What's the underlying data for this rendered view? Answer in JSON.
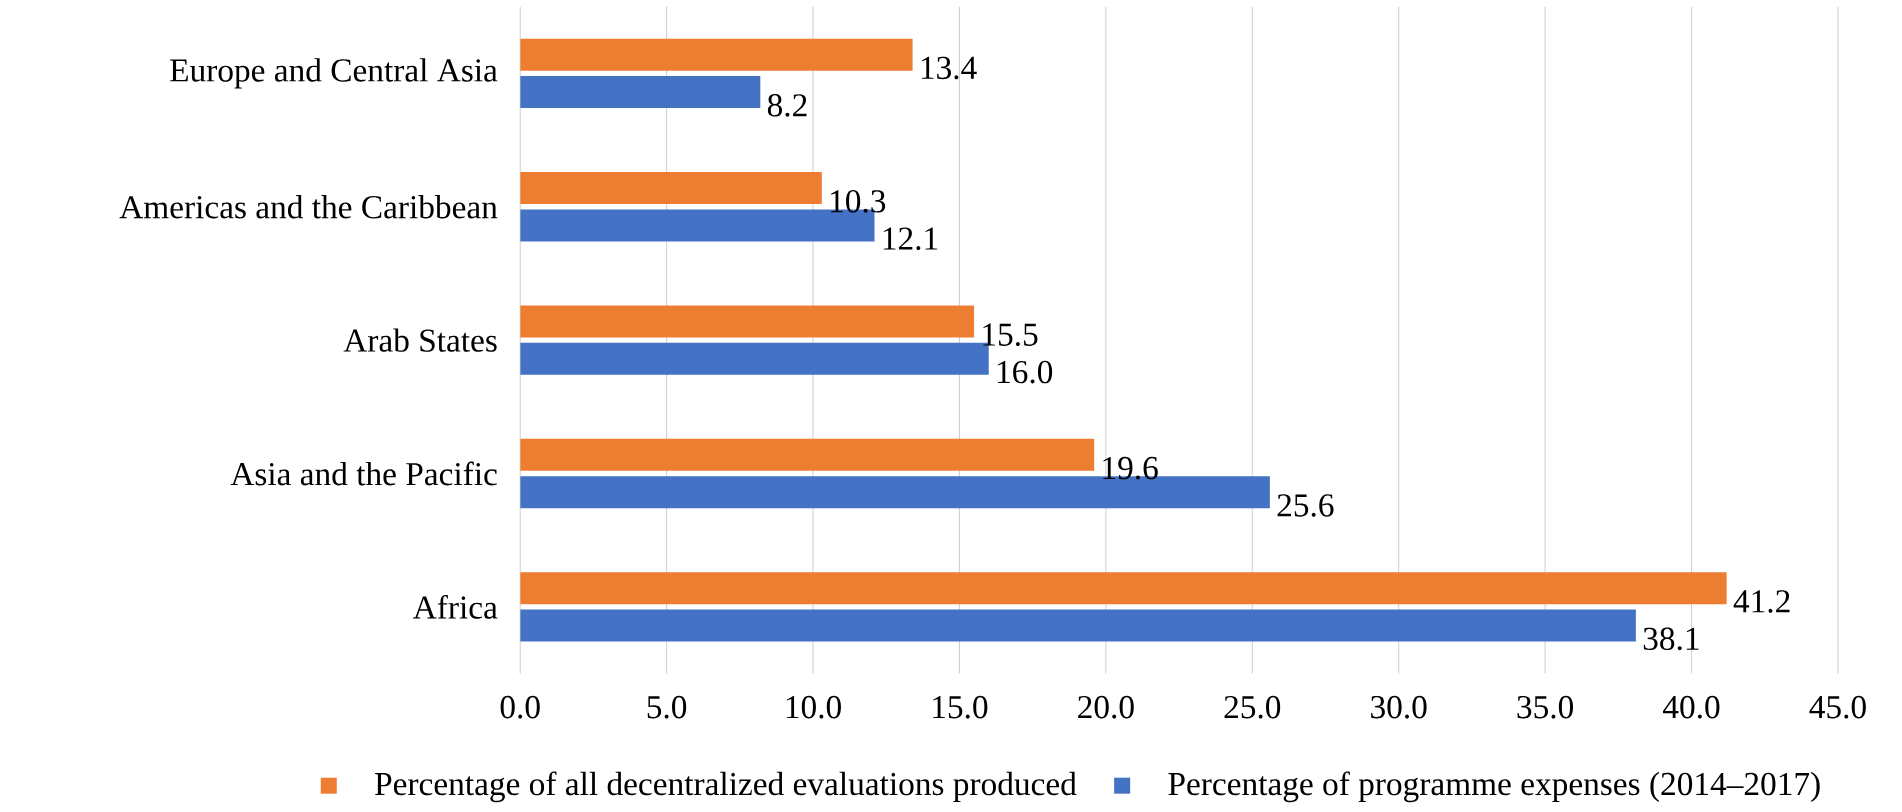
{
  "chart_data": {
    "type": "bar",
    "orientation": "horizontal",
    "categories": [
      "Europe and Central Asia",
      "Americas and the Caribbean",
      "Arab States",
      "Asia and the Pacific",
      "Africa"
    ],
    "series": [
      {
        "name": "Percentage of all decentralized evaluations produced",
        "color": "#ed7d31",
        "values": [
          13.4,
          10.3,
          15.5,
          19.6,
          41.2
        ],
        "value_labels": [
          "13.4",
          "10.3",
          "15.5",
          "19.6",
          "41.2"
        ]
      },
      {
        "name": "Percentage of programme expenses (2014–2017)",
        "color": "#4472c4",
        "values": [
          8.2,
          12.1,
          16.0,
          25.6,
          38.1
        ],
        "value_labels": [
          "8.2",
          "12.1",
          "16.0",
          "25.6",
          "38.1"
        ]
      }
    ],
    "xlim": [
      0,
      45
    ],
    "xticks": [
      {
        "value": 0,
        "label": "0.0"
      },
      {
        "value": 5,
        "label": "5.0"
      },
      {
        "value": 10,
        "label": "10.0"
      },
      {
        "value": 15,
        "label": "15.0"
      },
      {
        "value": 20,
        "label": "20.0"
      },
      {
        "value": 25,
        "label": "25.0"
      },
      {
        "value": 30,
        "label": "30.0"
      },
      {
        "value": 35,
        "label": "35.0"
      },
      {
        "value": 40,
        "label": "40.0"
      },
      {
        "value": 45,
        "label": "45.0"
      }
    ],
    "grid": "x",
    "legend": "bottom"
  }
}
